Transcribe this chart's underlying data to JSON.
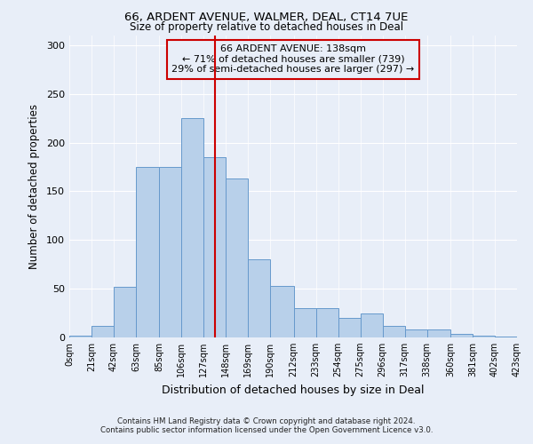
{
  "title": "66, ARDENT AVENUE, WALMER, DEAL, CT14 7UE",
  "subtitle": "Size of property relative to detached houses in Deal",
  "xlabel": "Distribution of detached houses by size in Deal",
  "ylabel": "Number of detached properties",
  "footer_line1": "Contains HM Land Registry data © Crown copyright and database right 2024.",
  "footer_line2": "Contains public sector information licensed under the Open Government Licence v3.0.",
  "annotation_line1": "66 ARDENT AVENUE: 138sqm",
  "annotation_line2": "← 71% of detached houses are smaller (739)",
  "annotation_line3": "29% of semi-detached houses are larger (297) →",
  "property_size": 138,
  "bin_edges": [
    0,
    21,
    42,
    63,
    85,
    106,
    127,
    148,
    169,
    190,
    212,
    233,
    254,
    275,
    296,
    317,
    338,
    360,
    381,
    402,
    423
  ],
  "bar_heights": [
    2,
    12,
    52,
    175,
    175,
    225,
    185,
    163,
    80,
    53,
    30,
    30,
    20,
    25,
    12,
    8,
    8,
    4,
    2,
    1
  ],
  "bar_color": "#b8d0ea",
  "bar_edge_color": "#6699cc",
  "vline_color": "#cc0000",
  "vline_x": 138,
  "annotation_box_edgecolor": "#cc0000",
  "background_color": "#e8eef8",
  "ylim": [
    0,
    310
  ],
  "yticks": [
    0,
    50,
    100,
    150,
    200,
    250,
    300
  ]
}
